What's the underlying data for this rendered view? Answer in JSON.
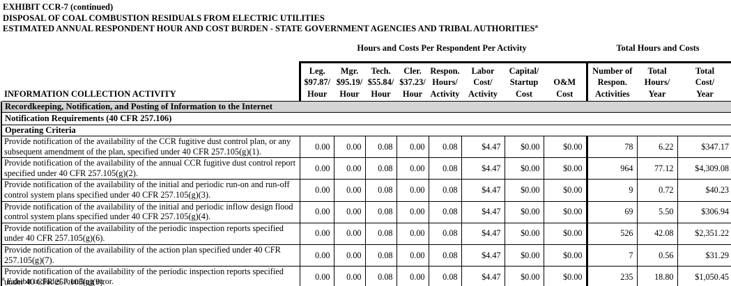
{
  "title": {
    "line1": "EXHIBIT CCR-7 (continued)",
    "line2": "DISPOSAL OF COAL COMBUSTION RESIDUALS FROM ELECTRIC UTILITIES",
    "line3": "ESTIMATED ANNUAL RESPONDENT HOUR AND COST BURDEN - STATE GOVERNMENT AGENCIES AND TRIBAL AUTHORITIES",
    "line3_superscript": "a"
  },
  "group_headers": {
    "per_activity": "Hours and Costs Per Respondent Per Activity",
    "totals": "Total Hours and Costs"
  },
  "table": {
    "row_header": "INFORMATION COLLECTION ACTIVITY",
    "columns": [
      {
        "lines": [
          "Leg.",
          "$97.87/",
          "Hour"
        ]
      },
      {
        "lines": [
          "Mgr.",
          "$95.19/",
          "Hour"
        ]
      },
      {
        "lines": [
          "Tech.",
          "$55.84/",
          "Hour"
        ]
      },
      {
        "lines": [
          "Cler.",
          "$37.23/",
          "Hour"
        ]
      },
      {
        "lines": [
          "Respon.",
          "Hours/",
          "Activity"
        ]
      },
      {
        "lines": [
          "Labor",
          "Cost/",
          "Activity"
        ]
      },
      {
        "lines": [
          "Capital/",
          "Startup",
          "Cost"
        ]
      },
      {
        "lines": [
          "O&M",
          "Cost"
        ]
      },
      {
        "lines": [
          "Number of",
          "Respon.",
          "Activities"
        ]
      },
      {
        "lines": [
          "Total",
          "Hours/",
          "Year"
        ]
      },
      {
        "lines": [
          "Total",
          "Cost/",
          "Year"
        ]
      }
    ],
    "section_rows": [
      "Recordkeeping, Notification, and Posting of Information to the Internet",
      "Notification Requirements (40 CFR 257.106)",
      "Operating Criteria"
    ],
    "rows": [
      {
        "activity": "Provide notification of the availability of the CCR fugitive dust control plan, or any subsequent amendment of the plan, specified under 40 CFR 257.105(g)(1).",
        "values": [
          "0.00",
          "0.00",
          "0.08",
          "0.00",
          "0.08",
          "$4.47",
          "$0.00",
          "$0.00",
          "78",
          "6.22",
          "$347.17"
        ]
      },
      {
        "activity": "Provide notification of the availability of the annual CCR fugitive dust control report specified under 40 CFR 257.105(g)(2).",
        "values": [
          "0.00",
          "0.00",
          "0.08",
          "0.00",
          "0.08",
          "$4.47",
          "$0.00",
          "$0.00",
          "964",
          "77.12",
          "$4,309.08"
        ]
      },
      {
        "activity": "Provide notification of the availability of the initial and periodic run-on and run-off control system plans specified under 40 CFR 257.105(g)(3).",
        "values": [
          "0.00",
          "0.00",
          "0.08",
          "0.00",
          "0.08",
          "$4.47",
          "$0.00",
          "$0.00",
          "9",
          "0.72",
          "$40.23"
        ]
      },
      {
        "activity": "Provide notification of the availability of the initial and periodic inflow design flood control system plans specified under 40 CFR 257.105(g)(4).",
        "values": [
          "0.00",
          "0.00",
          "0.08",
          "0.00",
          "0.08",
          "$4.47",
          "$0.00",
          "$0.00",
          "69",
          "5.50",
          "$306.94"
        ]
      },
      {
        "activity": "Provide notification of the availability of the periodic inspection reports specified under 40 CFR 257.105(g)(6).",
        "values": [
          "0.00",
          "0.00",
          "0.08",
          "0.00",
          "0.08",
          "$4.47",
          "$0.00",
          "$0.00",
          "526",
          "42.08",
          "$2,351.22"
        ]
      },
      {
        "activity": "Provide notification of the availability of the action plan specified under 40 CFR 257.105(g)(7).",
        "values": [
          "0.00",
          "0.00",
          "0.08",
          "0.00",
          "0.08",
          "$4.47",
          "$0.00",
          "$0.00",
          "7",
          "0.56",
          "$31.29"
        ]
      },
      {
        "activity": "Provide notification of the availability of the periodic inspection reports specified under 40 CFR 257.105(g)(9).",
        "values": [
          "0.00",
          "0.00",
          "0.08",
          "0.00",
          "0.08",
          "$4.47",
          "$0.00",
          "$0.00",
          "235",
          "18.80",
          "$1,050.45"
        ]
      }
    ]
  },
  "footnote": {
    "superscript": "a",
    "text": "Exhibit includes rounding error."
  },
  "colors": {
    "section_band": "#d4d4d4",
    "border": "#000000",
    "text": "#000000"
  }
}
